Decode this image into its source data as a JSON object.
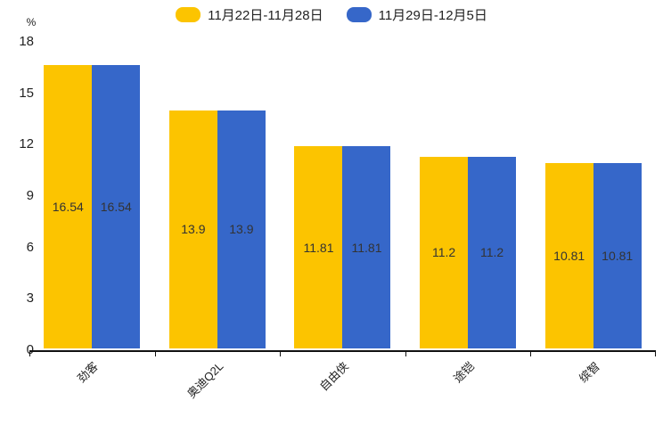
{
  "chart_data": {
    "type": "bar",
    "title": "",
    "xlabel": "",
    "ylabel": "%",
    "categories": [
      "劲客",
      "奥迪Q2L",
      "自由侠",
      "途铠",
      "缤智"
    ],
    "series": [
      {
        "name": "11月22日-11月28日",
        "color": "#FCC400",
        "values": [
          16.54,
          13.9,
          11.81,
          11.2,
          10.81
        ]
      },
      {
        "name": "11月29日-12月5日",
        "color": "#3667C9",
        "values": [
          16.54,
          13.9,
          11.81,
          11.2,
          10.81
        ]
      }
    ],
    "value_labels": [
      [
        "16.54",
        "13.9",
        "11.81",
        "11.2",
        "10.81"
      ],
      [
        "16.54",
        "13.9",
        "11.81",
        "11.2",
        "10.81"
      ]
    ],
    "ylim": [
      0,
      18
    ],
    "yticks": [
      0,
      3,
      6,
      9,
      12,
      15,
      18
    ],
    "legend_position": "top",
    "grid": false,
    "x_label_rotation_deg": 45,
    "colors": {
      "axis": "#111111",
      "tick_text": "#222222",
      "value_label_text": "#333333",
      "background": "#ffffff"
    }
  }
}
